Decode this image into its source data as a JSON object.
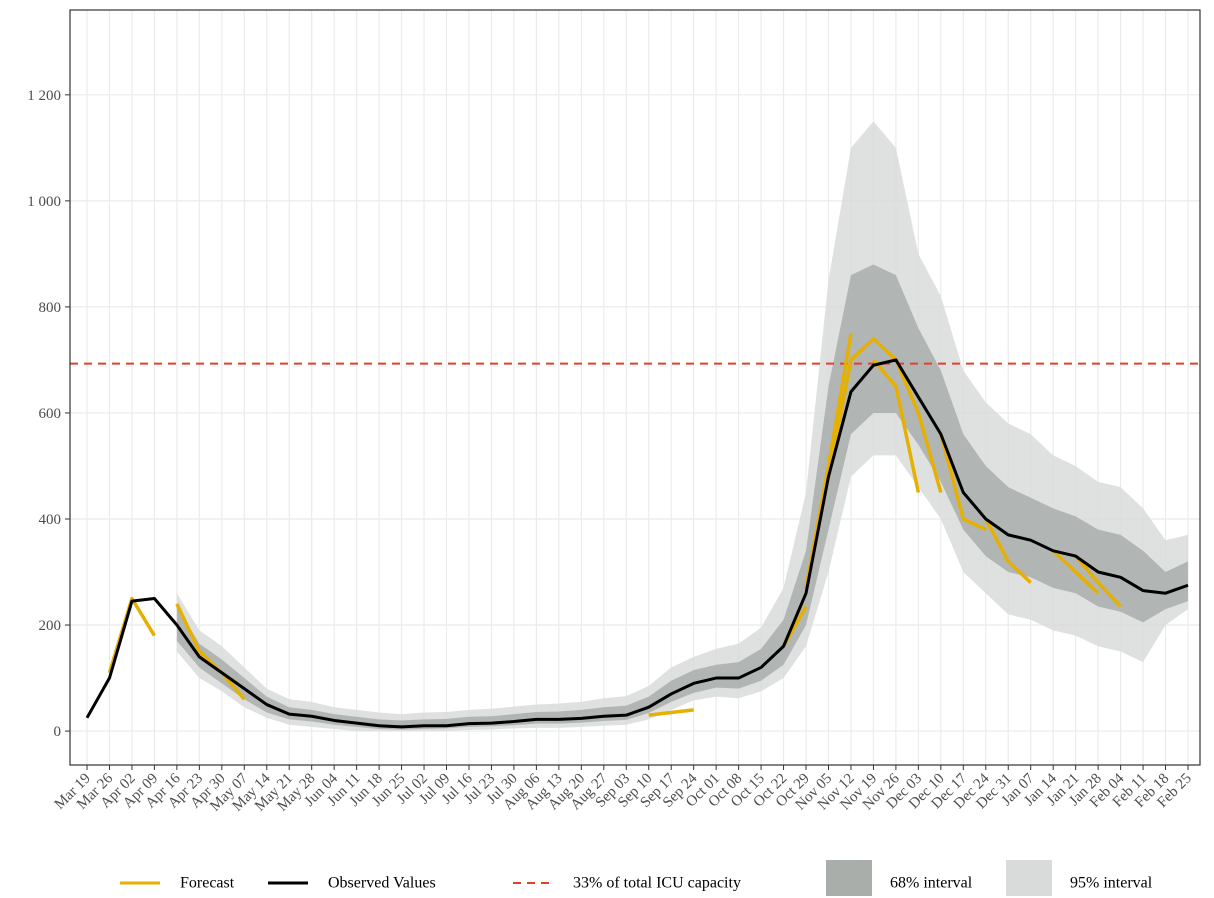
{
  "chart_data": {
    "type": "line",
    "categories": [
      "Mar 19",
      "Mar 26",
      "Apr 02",
      "Apr 09",
      "Apr 16",
      "Apr 23",
      "Apr 30",
      "May 07",
      "May 14",
      "May 21",
      "May 28",
      "Jun 04",
      "Jun 11",
      "Jun 18",
      "Jun 25",
      "Jul 02",
      "Jul 09",
      "Jul 16",
      "Jul 23",
      "Jul 30",
      "Aug 06",
      "Aug 13",
      "Aug 20",
      "Aug 27",
      "Sep 03",
      "Sep 10",
      "Sep 17",
      "Sep 24",
      "Oct 01",
      "Oct 08",
      "Oct 15",
      "Oct 22",
      "Oct 29",
      "Nov 05",
      "Nov 12",
      "Nov 19",
      "Nov 26",
      "Dec 03",
      "Dec 10",
      "Dec 17",
      "Dec 24",
      "Dec 31",
      "Jan 07",
      "Jan 14",
      "Jan 21",
      "Jan 28",
      "Feb 04",
      "Feb 11",
      "Feb 18",
      "Feb 25"
    ],
    "observed": {
      "name": "Observed Values",
      "color": "#000000",
      "values": [
        25,
        100,
        245,
        250,
        200,
        140,
        110,
        80,
        50,
        32,
        28,
        20,
        15,
        10,
        8,
        10,
        10,
        14,
        15,
        18,
        22,
        22,
        24,
        28,
        30,
        45,
        70,
        90,
        100,
        100,
        120,
        160,
        260,
        480,
        640,
        690,
        700,
        630,
        560,
        450,
        400,
        370,
        360,
        340,
        330,
        300,
        290,
        265,
        260,
        275
      ]
    },
    "forecasts": {
      "name": "Forecast",
      "color": "#e6b000",
      "runs": [
        {
          "start": "Mar 26",
          "values": [
            110,
            250,
            180
          ]
        },
        {
          "start": "Apr 16",
          "values": [
            240,
            150,
            110,
            60
          ]
        },
        {
          "start": "Sep 10",
          "values": [
            30,
            35,
            40
          ]
        },
        {
          "start": "Oct 22",
          "values": [
            160,
            235
          ]
        },
        {
          "start": "Oct 29",
          "values": [
            270,
            500,
            750
          ]
        },
        {
          "start": "Nov 05",
          "values": [
            480,
            700,
            740,
            700
          ]
        },
        {
          "start": "Nov 19",
          "values": [
            700,
            650,
            450
          ]
        },
        {
          "start": "Nov 26",
          "values": [
            700,
            600,
            450
          ]
        },
        {
          "start": "Dec 10",
          "values": [
            560,
            400,
            380
          ]
        },
        {
          "start": "Dec 24",
          "values": [
            400,
            320,
            280
          ]
        },
        {
          "start": "Jan 14",
          "values": [
            340,
            300,
            260
          ]
        },
        {
          "start": "Jan 21",
          "values": [
            330,
            280,
            235
          ]
        }
      ]
    },
    "interval_68": {
      "name": "68% interval",
      "color": "#a9aeab",
      "lower": [
        null,
        null,
        null,
        null,
        170,
        120,
        90,
        60,
        35,
        22,
        18,
        12,
        8,
        4,
        3,
        4,
        5,
        8,
        9,
        11,
        14,
        14,
        16,
        19,
        21,
        34,
        55,
        72,
        82,
        80,
        95,
        125,
        200,
        380,
        560,
        600,
        600,
        540,
        470,
        380,
        330,
        300,
        290,
        270,
        260,
        235,
        225,
        205,
        230,
        245
      ],
      "upper": [
        null,
        null,
        null,
        null,
        235,
        165,
        135,
        100,
        65,
        45,
        40,
        32,
        27,
        22,
        20,
        22,
        23,
        27,
        28,
        32,
        36,
        37,
        40,
        45,
        48,
        65,
        95,
        115,
        125,
        130,
        155,
        210,
        340,
        650,
        860,
        880,
        860,
        760,
        680,
        560,
        500,
        460,
        440,
        420,
        405,
        380,
        370,
        340,
        300,
        320
      ]
    },
    "interval_95": {
      "name": "95% interval",
      "color": "#d9dbda",
      "lower": [
        null,
        null,
        null,
        null,
        150,
        100,
        75,
        45,
        25,
        12,
        8,
        4,
        0,
        0,
        0,
        0,
        0,
        2,
        3,
        5,
        6,
        6,
        8,
        10,
        12,
        22,
        40,
        58,
        65,
        62,
        75,
        100,
        160,
        300,
        480,
        520,
        520,
        460,
        400,
        300,
        260,
        220,
        210,
        190,
        180,
        160,
        150,
        130,
        200,
        230
      ],
      "upper": [
        null,
        null,
        null,
        null,
        260,
        190,
        160,
        120,
        80,
        60,
        55,
        45,
        40,
        35,
        32,
        35,
        36,
        40,
        42,
        46,
        50,
        52,
        55,
        62,
        66,
        85,
        120,
        140,
        155,
        165,
        195,
        270,
        450,
        850,
        1100,
        1150,
        1100,
        900,
        820,
        680,
        620,
        580,
        560,
        520,
        500,
        470,
        460,
        420,
        360,
        370
      ]
    },
    "reference_line": {
      "label": "33% of total ICU capacity",
      "value": 693,
      "color": "#e0412a"
    },
    "ylim": [
      -64,
      1360
    ],
    "yticks": [
      0,
      200,
      400,
      600,
      800,
      {
        "value": 1000,
        "label": "1 000"
      },
      {
        "value": 1200,
        "label": "1 200"
      }
    ],
    "grid": true
  }
}
